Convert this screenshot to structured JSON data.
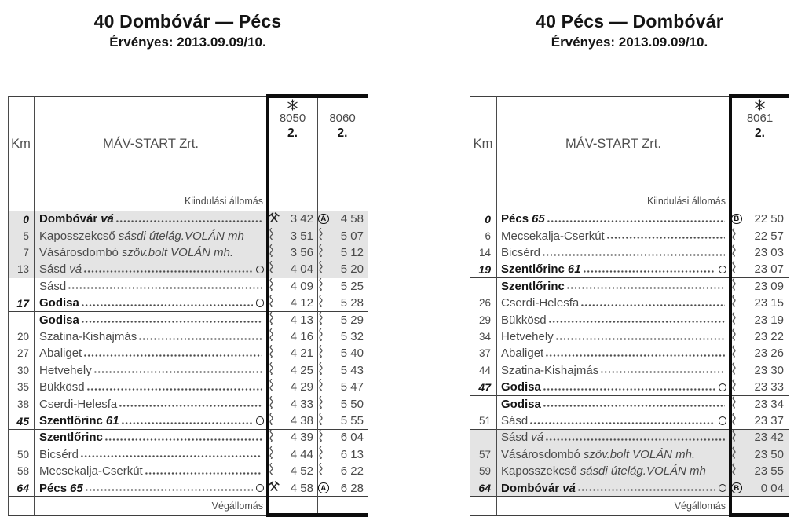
{
  "icons": {
    "snowflake-icon": "❄",
    "hammer-and-pick-icon": "⚒",
    "circled-a-icon": "A",
    "circled-b-icon": "B",
    "wavy-line-icon": "⌇",
    "stop-circle-icon": "○"
  },
  "colors": {
    "shaded_row": "#e4e4e4",
    "text": "#4a4a4a",
    "bold_text": "#161616",
    "rule": "#0d0d0d"
  },
  "tables": [
    {
      "title": "40 Dombóvár — Pécs",
      "subtitle": "Érvényes: 2013.09.09/10.",
      "km_label": "Km",
      "operator": "MÁV-START Zrt.",
      "origin_label": "Kiindulási állomás",
      "terminus_label": "Végállomás",
      "trains": [
        {
          "number": "8050",
          "class": "2.",
          "snowflake": true
        },
        {
          "number": "8060",
          "class": "2.",
          "snowflake": false
        }
      ],
      "rows": [
        {
          "km": "0",
          "kmBold": true,
          "name": "Dombóvár",
          "it": "vá",
          "bold": true,
          "leader": true,
          "circle": false,
          "shaded": true,
          "rule": false,
          "times": [
            [
              "hammers",
              "3 42"
            ],
            [
              "A",
              "4 58"
            ]
          ]
        },
        {
          "km": "5",
          "name": "Kaposszekcső",
          "it": "sásdi útelág.VOLÁN mh",
          "leader": false,
          "shaded": true,
          "times": [
            [
              "wavy",
              "3 51"
            ],
            [
              "wavy",
              "5 07"
            ]
          ]
        },
        {
          "km": "7",
          "name": "Vásárosdombó",
          "it": "szöv.bolt VOLÁN mh.",
          "leader": false,
          "shaded": true,
          "times": [
            [
              "wavy",
              "3 56"
            ],
            [
              "wavy",
              "5 12"
            ]
          ]
        },
        {
          "km": "13",
          "name": "Sásd",
          "it": "vá",
          "leader": true,
          "circle": true,
          "shaded": true,
          "times": [
            [
              "wavy",
              "4 04"
            ],
            [
              "wavy",
              "5 20"
            ]
          ]
        },
        {
          "km": "",
          "name": "Sásd",
          "leader": true,
          "times": [
            [
              "wavy",
              "4 09"
            ],
            [
              "wavy",
              "5 25"
            ]
          ]
        },
        {
          "km": "17",
          "kmBold": true,
          "name": "Godisa",
          "bold": true,
          "leader": true,
          "circle": true,
          "rule": true,
          "times": [
            [
              "wavy",
              "4 12"
            ],
            [
              "wavy",
              "5 28"
            ]
          ]
        },
        {
          "km": "",
          "name": "Godisa",
          "bold": true,
          "leader": true,
          "times": [
            [
              "wavy",
              "4 13"
            ],
            [
              "wavy",
              "5 29"
            ]
          ]
        },
        {
          "km": "20",
          "name": "Szatina-Kishajmás",
          "leader": true,
          "times": [
            [
              "wavy",
              "4 16"
            ],
            [
              "wavy",
              "5 32"
            ]
          ]
        },
        {
          "km": "27",
          "name": "Abaliget",
          "leader": true,
          "times": [
            [
              "wavy",
              "4 21"
            ],
            [
              "wavy",
              "5 40"
            ]
          ]
        },
        {
          "km": "30",
          "name": "Hetvehely",
          "leader": true,
          "times": [
            [
              "wavy",
              "4 25"
            ],
            [
              "wavy",
              "5 43"
            ]
          ]
        },
        {
          "km": "35",
          "name": "Bükkösd",
          "leader": true,
          "times": [
            [
              "wavy",
              "4 29"
            ],
            [
              "wavy",
              "5 47"
            ]
          ]
        },
        {
          "km": "38",
          "name": "Cserdi-Helesfa",
          "leader": true,
          "times": [
            [
              "wavy",
              "4 33"
            ],
            [
              "wavy",
              "5 50"
            ]
          ]
        },
        {
          "km": "45",
          "kmBold": true,
          "name": "Szentlőrinc",
          "it": "61",
          "bold": true,
          "leader": true,
          "circle": true,
          "rule": true,
          "times": [
            [
              "wavy",
              "4 38"
            ],
            [
              "wavy",
              "5 55"
            ]
          ]
        },
        {
          "km": "",
          "name": "Szentlőrinc",
          "bold": true,
          "leader": true,
          "times": [
            [
              "wavy",
              "4 39"
            ],
            [
              "wavy",
              "6 04"
            ]
          ]
        },
        {
          "km": "50",
          "name": "Bicsérd",
          "leader": true,
          "times": [
            [
              "wavy",
              "4 44"
            ],
            [
              "wavy",
              "6 13"
            ]
          ]
        },
        {
          "km": "58",
          "name": "Mecsekalja-Cserkút",
          "leader": true,
          "times": [
            [
              "wavy",
              "4 52"
            ],
            [
              "wavy",
              "6 22"
            ]
          ]
        },
        {
          "km": "64",
          "kmBold": true,
          "name": "Pécs",
          "it": "65",
          "bold": true,
          "leader": true,
          "circle": true,
          "rule": true,
          "times": [
            [
              "hammers",
              "4 58"
            ],
            [
              "A",
              "6 28"
            ]
          ]
        }
      ]
    },
    {
      "title": "40 Pécs — Dombóvár",
      "subtitle": "Érvényes: 2013.09.09/10.",
      "km_label": "Km",
      "operator": "MÁV-START Zrt.",
      "origin_label": "Kiindulási állomás",
      "terminus_label": "Végállomás",
      "trains": [
        {
          "number": "8061",
          "class": "2.",
          "snowflake": true
        }
      ],
      "rows": [
        {
          "km": "0",
          "kmBold": true,
          "name": "Pécs",
          "it": "65",
          "bold": true,
          "leader": true,
          "times": [
            [
              "B",
              "22 50"
            ]
          ]
        },
        {
          "km": "6",
          "name": "Mecsekalja-Cserkút",
          "leader": true,
          "times": [
            [
              "wavy",
              "22 57"
            ]
          ]
        },
        {
          "km": "14",
          "name": "Bicsérd",
          "leader": true,
          "times": [
            [
              "wavy",
              "23 03"
            ]
          ]
        },
        {
          "km": "19",
          "kmBold": true,
          "name": "Szentlőrinc",
          "it": "61",
          "bold": true,
          "leader": true,
          "circle": true,
          "rule": true,
          "times": [
            [
              "wavy",
              "23 07"
            ]
          ]
        },
        {
          "km": "",
          "name": "Szentlőrinc",
          "bold": true,
          "leader": true,
          "times": [
            [
              "wavy",
              "23 09"
            ]
          ]
        },
        {
          "km": "26",
          "name": "Cserdi-Helesfa",
          "leader": true,
          "times": [
            [
              "wavy",
              "23 15"
            ]
          ]
        },
        {
          "km": "29",
          "name": "Bükkösd",
          "leader": true,
          "times": [
            [
              "wavy",
              "23 19"
            ]
          ]
        },
        {
          "km": "34",
          "name": "Hetvehely",
          "leader": true,
          "times": [
            [
              "wavy",
              "23 22"
            ]
          ]
        },
        {
          "km": "37",
          "name": "Abaliget",
          "leader": true,
          "times": [
            [
              "wavy",
              "23 26"
            ]
          ]
        },
        {
          "km": "44",
          "name": "Szatina-Kishajmás",
          "leader": true,
          "times": [
            [
              "wavy",
              "23 30"
            ]
          ]
        },
        {
          "km": "47",
          "kmBold": true,
          "name": "Godisa",
          "bold": true,
          "leader": true,
          "circle": true,
          "rule": true,
          "times": [
            [
              "wavy",
              "23 33"
            ]
          ]
        },
        {
          "km": "",
          "name": "Godisa",
          "bold": true,
          "leader": true,
          "times": [
            [
              "wavy",
              "23 34"
            ]
          ]
        },
        {
          "km": "51",
          "name": "Sásd",
          "leader": true,
          "circle": true,
          "rule": true,
          "times": [
            [
              "wavy",
              "23 37"
            ]
          ]
        },
        {
          "km": "",
          "name": "Sásd",
          "it": "vá",
          "leader": true,
          "shaded": true,
          "times": [
            [
              "wavy",
              "23 42"
            ]
          ]
        },
        {
          "km": "57",
          "name": "Vásárosdombó",
          "it": "szöv.bolt VOLÁN mh.",
          "leader": false,
          "shaded": true,
          "times": [
            [
              "wavy",
              "23 50"
            ]
          ]
        },
        {
          "km": "59",
          "name": "Kaposszekcső",
          "it": "sásdi útelág.VOLÁN mh",
          "leader": false,
          "shaded": true,
          "times": [
            [
              "wavy",
              "23 55"
            ]
          ]
        },
        {
          "km": "64",
          "kmBold": true,
          "name": "Dombóvár",
          "it": "vá",
          "bold": true,
          "leader": true,
          "circle": true,
          "rule": true,
          "shaded": true,
          "times": [
            [
              "B",
              "0 04"
            ]
          ]
        }
      ]
    }
  ]
}
